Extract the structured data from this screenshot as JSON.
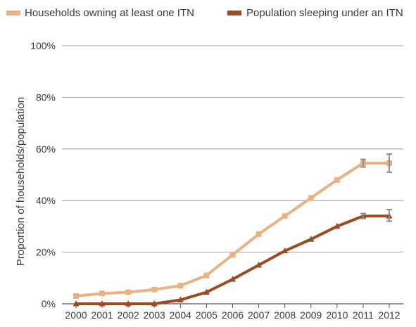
{
  "chart_data": {
    "type": "line",
    "title": "",
    "xlabel": "",
    "ylabel": "Proportion of households/population",
    "ylim": [
      0,
      100
    ],
    "yticks": [
      "0%",
      "20%",
      "40%",
      "60%",
      "80%",
      "100%"
    ],
    "y_tick_values": [
      0,
      20,
      40,
      60,
      80,
      100
    ],
    "x": [
      "2000",
      "2001",
      "2002",
      "2003",
      "2004",
      "2005",
      "2006",
      "2007",
      "2008",
      "2009",
      "2010",
      "2011",
      "2012"
    ],
    "grid": "horizontal",
    "legend_position": "top",
    "series": [
      {
        "name": "Households owning at least one ITN",
        "color": "#e8b283",
        "values": [
          3,
          4,
          4.5,
          5.5,
          7,
          11,
          19,
          27,
          34,
          41,
          48,
          54.5,
          54.5
        ],
        "error_bars": [
          null,
          null,
          null,
          null,
          null,
          null,
          null,
          null,
          null,
          null,
          null,
          [
            53,
            56
          ],
          [
            51,
            58
          ]
        ]
      },
      {
        "name": "Population sleeping under an ITN",
        "color": "#9b4a22",
        "values": [
          0,
          0,
          0,
          0,
          1.5,
          4.5,
          9.5,
          15,
          20.5,
          25,
          30,
          34,
          34
        ],
        "error_bars": [
          null,
          null,
          null,
          null,
          null,
          null,
          null,
          null,
          null,
          null,
          null,
          [
            33,
            35
          ],
          [
            32,
            36.5
          ]
        ]
      }
    ]
  }
}
